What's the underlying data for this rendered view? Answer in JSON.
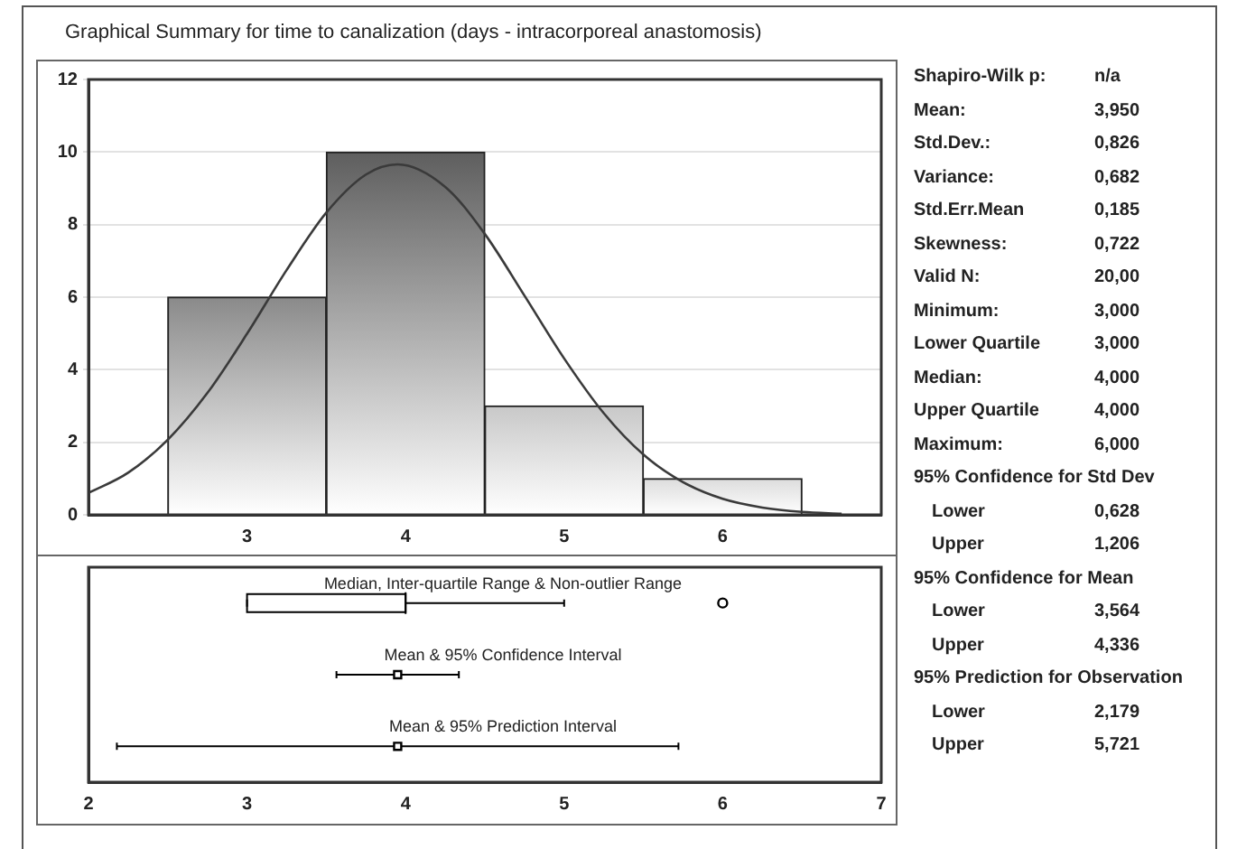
{
  "chart_data": [
    {
      "type": "histogram",
      "title": "Graphical Summary for time to canalization (days - intracorporeal anastomosis)",
      "bins": [
        2.5,
        3.5,
        4.5,
        5.5,
        6.5
      ],
      "xlim": [
        2,
        7
      ],
      "xticks": [
        3,
        4,
        5,
        6
      ],
      "ylim": [
        0,
        12
      ],
      "yticks": [
        0,
        2,
        4,
        6,
        8,
        10,
        12
      ],
      "grid": "y",
      "series": [
        {
          "type": "histogram",
          "values": [
            6,
            10,
            3,
            1
          ],
          "colors": [
            "#8a8a8a",
            "#5e5e5e",
            "#c8c8c8",
            "#dcdcdc"
          ]
        },
        {
          "type": "line",
          "marker": "none",
          "color": "#3a3a3a",
          "x": [
            2,
            2.25,
            2.5,
            2.75,
            3,
            3.25,
            3.5,
            3.75,
            3.95,
            4.25,
            4.5,
            4.75,
            5,
            5.25,
            5.5,
            5.75,
            6,
            6.25,
            6.5,
            6.75
          ],
          "values": [
            0.6,
            1.16,
            2.07,
            3.36,
            4.99,
            6.75,
            8.33,
            9.38,
            9.66,
            9.04,
            7.74,
            6.04,
            4.31,
            2.8,
            1.66,
            0.9,
            0.44,
            0.2,
            0.08,
            0.03
          ]
        }
      ]
    },
    {
      "type": "box",
      "orientation": "horizontal",
      "categories": [
        "Median, Inter-quartile Range & Non-outlier Range",
        "Mean & 95% Confidence Interval",
        "Mean & 95% Prediction Interval"
      ],
      "xlim": [
        2,
        7
      ],
      "xticks": [
        2,
        3,
        4,
        5,
        6,
        7
      ],
      "series": [
        {
          "type": "box",
          "color": "#000000",
          "boxes": [
            {
              "low": 3,
              "q1": 3,
              "median": 4,
              "q3": 4,
              "high": 5,
              "outliers": [
                6
              ]
            },
            null,
            null
          ]
        },
        {
          "type": "scatter",
          "marker": "square",
          "color": "#000000",
          "values": [
            null,
            3.95,
            3.95
          ],
          "errors": [
            null,
            [
              3.564,
              4.336
            ],
            [
              2.179,
              5.721
            ]
          ]
        }
      ]
    },
    {
      "type": "other",
      "annotations": [
        "Shapiro-Wilk p:\tn/a",
        "Mean:\t3,950",
        "Std.Dev.:\t0,826",
        "Variance:\t0,682",
        "Std.Err.Mean\t0,185",
        "Skewness:\t0,722",
        "Valid N:\t20,00",
        "Minimum:\t3,000",
        "Lower Quartile\t3,000",
        "Median:\t4,000",
        "Upper Quartile\t4,000",
        "Maximum:\t6,000",
        "95% Confidence for Std Dev",
        "Lower\t0,628",
        "Upper\t1,206",
        "95% Confidence for Mean",
        "Lower\t3,564",
        "Upper\t4,336",
        "95% Prediction for Observation",
        "Lower\t2,179",
        "Upper\t5,721"
      ]
    }
  ]
}
